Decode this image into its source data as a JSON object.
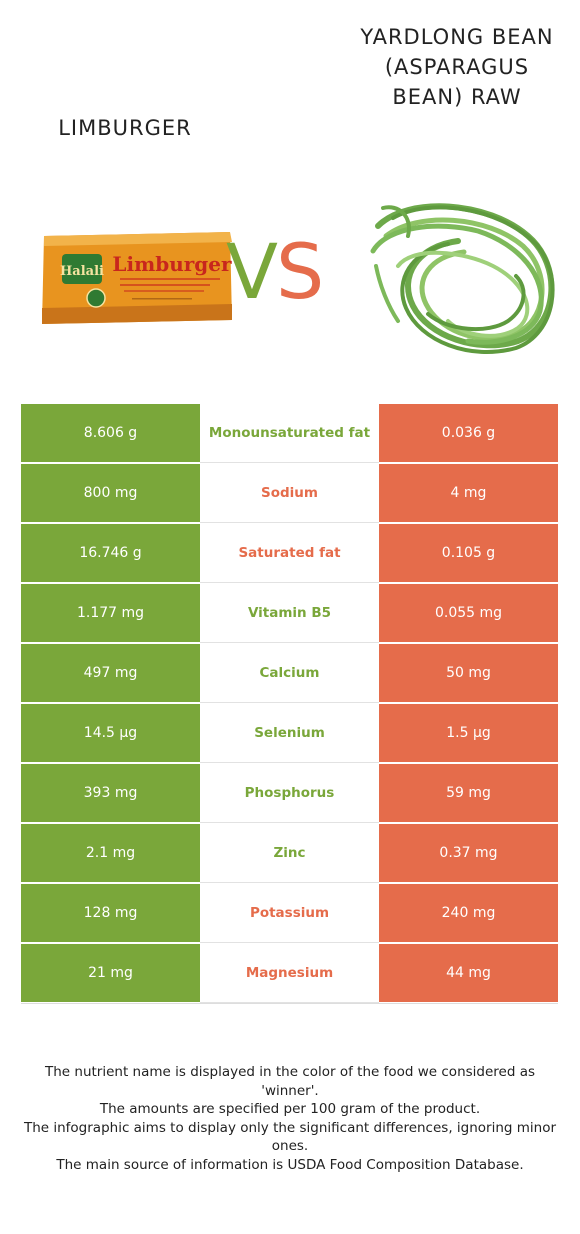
{
  "foods": {
    "left": {
      "name": "LIMBURGER",
      "color": "#7aa73a",
      "image": "limburger-cheese-box"
    },
    "right": {
      "name": "YARDLONG BEAN (ASPARAGUS BEAN) RAW",
      "color": "#e56c4b",
      "image": "yardlong-beans"
    }
  },
  "vs": {
    "v": "V",
    "s": "S"
  },
  "cheese_label": {
    "brand": "Halali",
    "product": "Limburger"
  },
  "rows": [
    {
      "left": "8.606 g",
      "nutrient": "Monounsaturated fat",
      "right": "0.036 g",
      "winner": "left"
    },
    {
      "left": "800 mg",
      "nutrient": "Sodium",
      "right": "4 mg",
      "winner": "right"
    },
    {
      "left": "16.746 g",
      "nutrient": "Saturated fat",
      "right": "0.105 g",
      "winner": "right"
    },
    {
      "left": "1.177 mg",
      "nutrient": "Vitamin B5",
      "right": "0.055 mg",
      "winner": "left"
    },
    {
      "left": "497 mg",
      "nutrient": "Calcium",
      "right": "50 mg",
      "winner": "left"
    },
    {
      "left": "14.5 µg",
      "nutrient": "Selenium",
      "right": "1.5 µg",
      "winner": "left"
    },
    {
      "left": "393 mg",
      "nutrient": "Phosphorus",
      "right": "59 mg",
      "winner": "left"
    },
    {
      "left": "2.1 mg",
      "nutrient": "Zinc",
      "right": "0.37 mg",
      "winner": "left"
    },
    {
      "left": "128 mg",
      "nutrient": "Potassium",
      "right": "240 mg",
      "winner": "right"
    },
    {
      "left": "21 mg",
      "nutrient": "Magnesium",
      "right": "44 mg",
      "winner": "right"
    }
  ],
  "footer": [
    "The nutrient name is displayed in the color of the food we considered as 'winner'.",
    "The amounts are specified per 100 gram of the product.",
    "The infographic aims to display only the significant differences, ignoring minor ones.",
    "The main source of information is USDA Food Composition Database."
  ]
}
